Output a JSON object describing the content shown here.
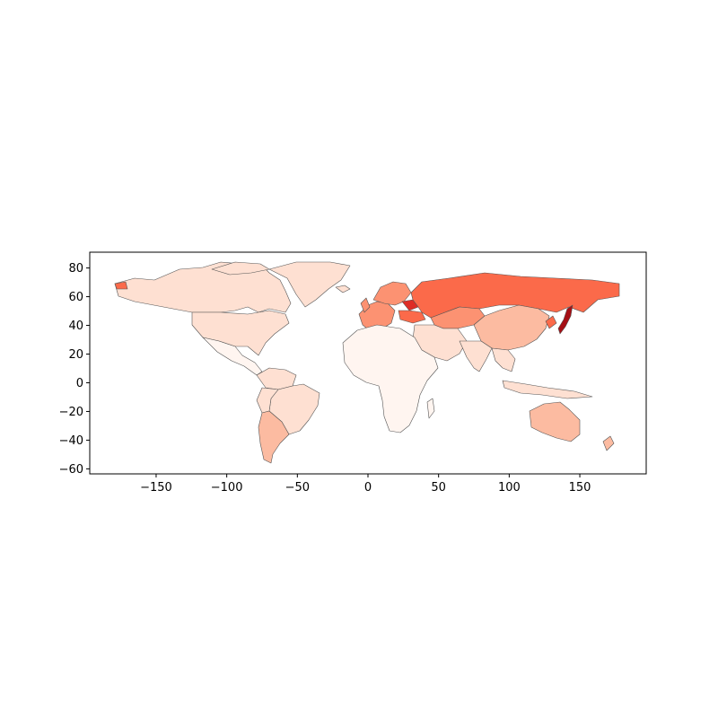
{
  "chart_data": {
    "type": "choropleth",
    "title": "",
    "xlabel": "",
    "ylabel": "",
    "xlim": [
      -197,
      197
    ],
    "ylim": [
      -63.5,
      91
    ],
    "x_ticks": [
      -150,
      -100,
      -50,
      0,
      50,
      100,
      150
    ],
    "y_ticks": [
      -60,
      -40,
      -20,
      0,
      20,
      40,
      60,
      80
    ],
    "grid": false,
    "legend": "none",
    "colormap": "Reds",
    "border_color": "#555555",
    "shade_scale": [
      "#fff5f0",
      "#fee0d2",
      "#fcbba1",
      "#fc9272",
      "#fb6a4a",
      "#de2d26",
      "#a50f15"
    ],
    "regions": [
      {
        "name": "Russia",
        "level": 4
      },
      {
        "name": "Ukraine",
        "level": 4
      },
      {
        "name": "Belarus",
        "level": 5
      },
      {
        "name": "Kazakhstan",
        "level": 3
      },
      {
        "name": "Japan",
        "level": 6
      },
      {
        "name": "South Korea",
        "level": 4
      },
      {
        "name": "China",
        "level": 2
      },
      {
        "name": "Argentina",
        "level": 2
      },
      {
        "name": "Canada",
        "level": 1
      },
      {
        "name": "United States",
        "level": 1
      },
      {
        "name": "Australia",
        "level": 2
      },
      {
        "name": "Greenland",
        "level": 1
      },
      {
        "name": "Brazil",
        "level": 1
      },
      {
        "name": "Africa",
        "level": 0
      },
      {
        "name": "Europe",
        "level": 3
      }
    ]
  }
}
